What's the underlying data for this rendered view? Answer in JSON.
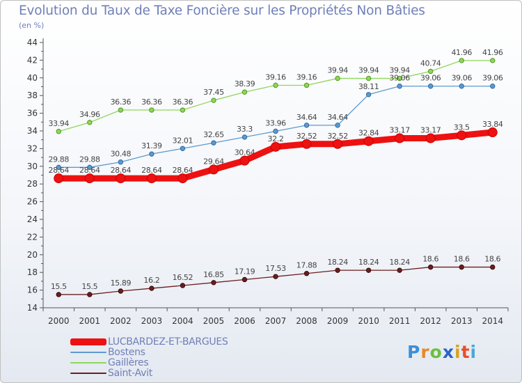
{
  "title": "Evolution du Taux de Taxe Foncière sur les Propriétés Non Bâties",
  "unit": "(en %)",
  "logo": {
    "letters": [
      "P",
      "r",
      "o",
      "x",
      "i",
      "t",
      "i"
    ],
    "colors": [
      "#3b8fd8",
      "#e8892b",
      "#6cbf3f",
      "#2a63c6",
      "#d9a21c",
      "#e8502b",
      "#4aa8d8"
    ]
  },
  "chart_data": {
    "type": "line",
    "title": "Evolution du Taux de Taxe Foncière sur les Propriétés Non Bâties",
    "ylabel": "(en %)",
    "xlabel": "",
    "x": [
      "2000",
      "2001",
      "2002",
      "2003",
      "2004",
      "2005",
      "2006",
      "2007",
      "2008",
      "2009",
      "2010",
      "2011",
      "2012",
      "2013",
      "2014"
    ],
    "ylim": [
      14,
      44
    ],
    "yticks": [
      "14",
      "16",
      "18",
      "20",
      "22",
      "24",
      "26",
      "28",
      "30",
      "32",
      "34",
      "36",
      "38",
      "40",
      "42",
      "44"
    ],
    "grid": false,
    "legend_position": "bottom-left",
    "series": [
      {
        "name": "LUCBARDEZ-ET-BARGUES",
        "color": "#ee1111",
        "values": [
          28.64,
          28.64,
          28.64,
          28.64,
          28.64,
          29.64,
          30.64,
          32.2,
          32.52,
          32.52,
          32.84,
          33.17,
          33.17,
          33.5,
          33.84
        ],
        "labels": [
          "28.64",
          "28.64",
          "28.64",
          "28.64",
          "28.64",
          "29.64",
          "30.64",
          "32.2",
          "32.52",
          "32.52",
          "32.84",
          "33.17",
          "33.17",
          "33.5",
          "33.84"
        ]
      },
      {
        "name": "Bostens",
        "color": "#5d9acd",
        "values": [
          29.88,
          29.88,
          30.48,
          31.39,
          32.01,
          32.65,
          33.3,
          33.96,
          34.64,
          34.64,
          38.11,
          39.06,
          39.06,
          39.06,
          39.06
        ],
        "labels": [
          "29.88",
          "29.88",
          "30.48",
          "31.39",
          "32.01",
          "32.65",
          "33.3",
          "33.96",
          "34.64",
          "34.64",
          "38.11",
          "39.06",
          "39.06",
          "39.06",
          "39.06"
        ]
      },
      {
        "name": "Gaillères",
        "color": "#8fd65a",
        "values": [
          33.94,
          34.96,
          36.36,
          36.36,
          36.36,
          37.45,
          38.39,
          39.16,
          39.16,
          39.94,
          39.94,
          39.94,
          40.74,
          41.96,
          41.96
        ],
        "labels": [
          "33.94",
          "34.96",
          "36.36",
          "36.36",
          "36.36",
          "37.45",
          "38.39",
          "39.16",
          "39.16",
          "39.94",
          "39.94",
          "39.94",
          "40.74",
          "41.96",
          "41.96"
        ]
      },
      {
        "name": "Saint-Avit",
        "color": "#6b1e1e",
        "values": [
          15.5,
          15.5,
          15.89,
          16.2,
          16.52,
          16.85,
          17.19,
          17.53,
          17.88,
          18.24,
          18.24,
          18.24,
          18.6,
          18.6,
          18.6
        ],
        "labels": [
          "15.5",
          "15.5",
          "15.89",
          "16.2",
          "16.52",
          "16.85",
          "17.19",
          "17.53",
          "17.88",
          "18.24",
          "18.24",
          "18.24",
          "18.6",
          "18.6",
          "18.6"
        ]
      }
    ]
  }
}
